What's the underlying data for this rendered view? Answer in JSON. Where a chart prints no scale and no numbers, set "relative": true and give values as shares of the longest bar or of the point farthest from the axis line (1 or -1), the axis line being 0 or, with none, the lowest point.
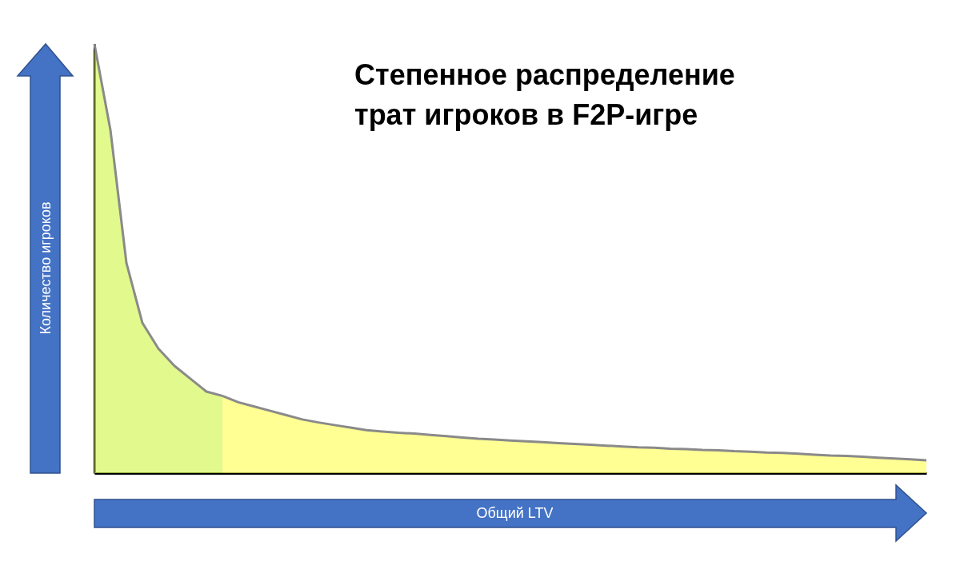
{
  "chart_data": {
    "type": "area",
    "title": "Степенное распределение трат игроков в F2P-игре",
    "xlabel": "Общий LTV",
    "ylabel": "Количество игроков",
    "relative": true,
    "categories": [
      null,
      null,
      null,
      null,
      null,
      null,
      null,
      null,
      null,
      null,
      null,
      null,
      null,
      null,
      null,
      null,
      null,
      null,
      null,
      null,
      null,
      null,
      null,
      null,
      null,
      null,
      null,
      null,
      null,
      null,
      null,
      null,
      null,
      null,
      null,
      null,
      null,
      null,
      null,
      null,
      null,
      null,
      null,
      null,
      null,
      null,
      null,
      null,
      null,
      null,
      null,
      null,
      null
    ],
    "series": [
      {
        "color": "#d4f75c",
        "values": [
          1.0,
          0.8,
          0.49,
          0.35,
          0.29,
          0.25,
          0.22,
          0.19,
          0.18,
          null,
          null,
          null,
          null,
          null,
          null,
          null,
          null,
          null,
          null,
          null,
          null,
          null,
          null,
          null,
          null,
          null,
          null,
          null,
          null,
          null,
          null,
          null,
          null,
          null,
          null,
          null,
          null,
          null,
          null,
          null,
          null,
          null,
          null,
          null,
          null,
          null,
          null,
          null,
          null,
          null,
          null,
          null,
          null
        ]
      },
      {
        "color": "#ffff66",
        "values": [
          null,
          null,
          null,
          null,
          null,
          null,
          null,
          null,
          0.18,
          0.165,
          0.155,
          0.145,
          0.135,
          0.125,
          0.118,
          0.112,
          0.106,
          0.1,
          0.097,
          0.094,
          0.092,
          0.089,
          0.086,
          0.083,
          0.08,
          0.078,
          0.076,
          0.074,
          0.072,
          0.07,
          0.068,
          0.066,
          0.064,
          0.062,
          0.06,
          0.059,
          0.057,
          0.056,
          0.054,
          0.053,
          0.051,
          0.05,
          0.048,
          0.047,
          0.045,
          0.043,
          0.041,
          0.04,
          0.038,
          0.036,
          0.034,
          0.032,
          0.03
        ]
      }
    ]
  }
}
